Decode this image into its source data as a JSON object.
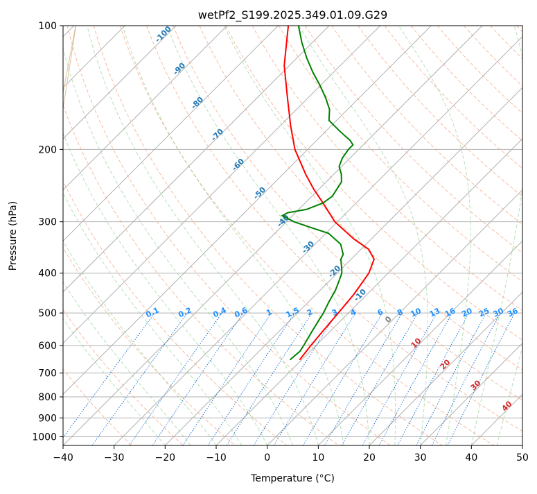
{
  "chart_data": {
    "type": "line",
    "subtype": "skew-t log-p diagram",
    "title": "wetPf2_S199.2025.349.01.09.G29",
    "xlabel": "Temperature (°C)",
    "ylabel": "Pressure (hPa)",
    "xlim": [
      -40,
      50
    ],
    "ylim": [
      1050,
      100
    ],
    "x_ticks": [
      -40,
      -30,
      -20,
      -10,
      0,
      10,
      20,
      30,
      40,
      50
    ],
    "y_ticks": [
      100,
      200,
      300,
      400,
      500,
      600,
      700,
      800,
      900,
      1000
    ],
    "grid": true,
    "series": [
      {
        "name": "Temperature",
        "color": "#ff0000",
        "pressure": [
          650,
          600,
          550,
          500,
          450,
          400,
          370,
          350,
          330,
          300,
          270,
          250,
          230,
          200,
          175,
          150,
          125,
          100
        ],
        "values": [
          -10.4,
          -11.0,
          -11.5,
          -12.0,
          -12.6,
          -13.8,
          -15.5,
          -18.5,
          -23.5,
          -30.5,
          -36.5,
          -41.0,
          -45.5,
          -52.5,
          -58.0,
          -64.0,
          -71.0,
          -78.0
        ]
      },
      {
        "name": "Dewpoint",
        "color": "#008000",
        "pressure": [
          650,
          620,
          600,
          560,
          520,
          500,
          470,
          440,
          420,
          400,
          390,
          380,
          370,
          360,
          340,
          320,
          310,
          300,
          290,
          285,
          280,
          270,
          260,
          250,
          240,
          230,
          220,
          210,
          200,
          195,
          190,
          185,
          180,
          170,
          160,
          150,
          140,
          130,
          120,
          110,
          100
        ],
        "values": [
          -12.3,
          -12.0,
          -12.4,
          -13.4,
          -14.4,
          -14.9,
          -16.0,
          -17.0,
          -18.0,
          -19.1,
          -20.0,
          -21.0,
          -22.0,
          -22.5,
          -25.0,
          -29.5,
          -34.0,
          -38.5,
          -42.0,
          -41.5,
          -38.5,
          -36.5,
          -36.0,
          -36.5,
          -37.0,
          -38.5,
          -40.5,
          -41.5,
          -42.0,
          -42.0,
          -43.5,
          -45.5,
          -47.5,
          -51.5,
          -53.5,
          -56.5,
          -60.0,
          -64.0,
          -68.0,
          -72.0,
          -76.0
        ]
      }
    ],
    "reference_lines": {
      "isotherms": "gray",
      "dry_adiabats": "dashed red",
      "moist_adiabats": "dashed green",
      "mixing_ratio": "dotted blue"
    },
    "annotations": {
      "moist_adiabat_labels": [
        "-100",
        "-90",
        "-80",
        "-70",
        "-60",
        "-50",
        "-40",
        "-30",
        "-20",
        "-10",
        "0",
        "10",
        "20",
        "30",
        "40"
      ],
      "mixing_ratio_labels": [
        "0.1",
        "0.2",
        "0.4",
        "0.6",
        "1",
        "1.5",
        "2",
        "3",
        "4",
        "6",
        "8",
        "10",
        "13",
        "16",
        "20",
        "25",
        "30",
        "36"
      ]
    }
  }
}
